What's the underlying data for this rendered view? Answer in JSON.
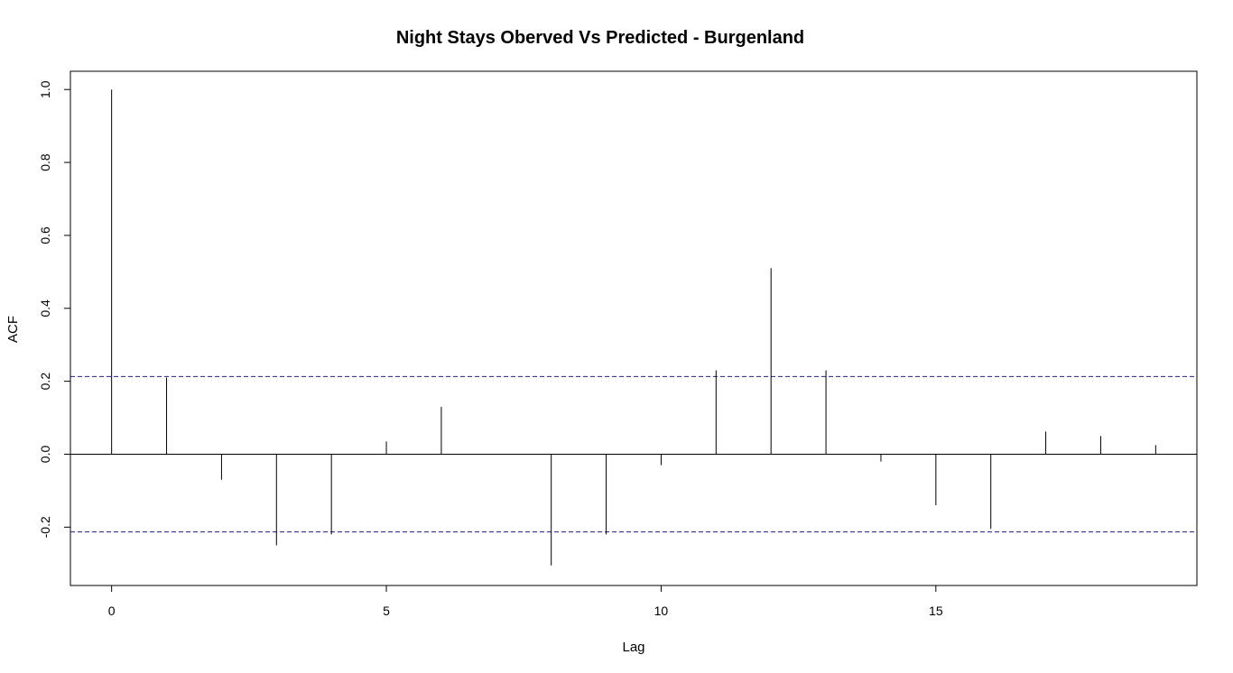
{
  "chart_data": {
    "type": "bar",
    "subtype": "acf-stem",
    "title": "Night Stays Oberved Vs Predicted - Burgenland",
    "xlabel": "Lag",
    "ylabel": "ACF",
    "xlim": [
      -0.75,
      19.75
    ],
    "ylim": [
      -0.36,
      1.05
    ],
    "x_ticks": [
      0,
      5,
      10,
      15
    ],
    "y_ticks": [
      -0.2,
      0.0,
      0.2,
      0.4,
      0.6,
      0.8,
      1.0
    ],
    "y_tick_labels": [
      "-0.2",
      "0.0",
      "0.2",
      "0.4",
      "0.6",
      "0.8",
      "1.0"
    ],
    "x_tick_labels": [
      "0",
      "5",
      "10",
      "15"
    ],
    "lags": [
      0,
      1,
      2,
      3,
      4,
      5,
      6,
      7,
      8,
      9,
      10,
      11,
      12,
      13,
      14,
      15,
      16,
      17,
      18,
      19
    ],
    "values": [
      1.0,
      0.21,
      -0.07,
      -0.25,
      -0.22,
      0.035,
      0.13,
      0.0,
      -0.305,
      -0.22,
      -0.03,
      0.23,
      0.51,
      0.23,
      -0.02,
      -0.14,
      -0.205,
      0.062,
      0.05,
      0.025
    ],
    "confidence_bound": 0.213,
    "grid": false,
    "colors": {
      "bars": "#000000",
      "bounds": "#1f1f8f",
      "zero_line": "#000000",
      "frame": "#000000"
    }
  }
}
